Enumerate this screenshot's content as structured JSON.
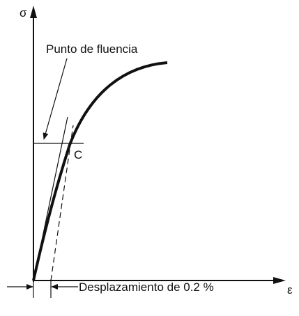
{
  "axes": {
    "y_label": "σ",
    "x_label": "ε"
  },
  "annotations": {
    "yield_point": "Punto de fluencia",
    "point": "C",
    "offset": "Desplazamiento de 0.2 %"
  }
}
